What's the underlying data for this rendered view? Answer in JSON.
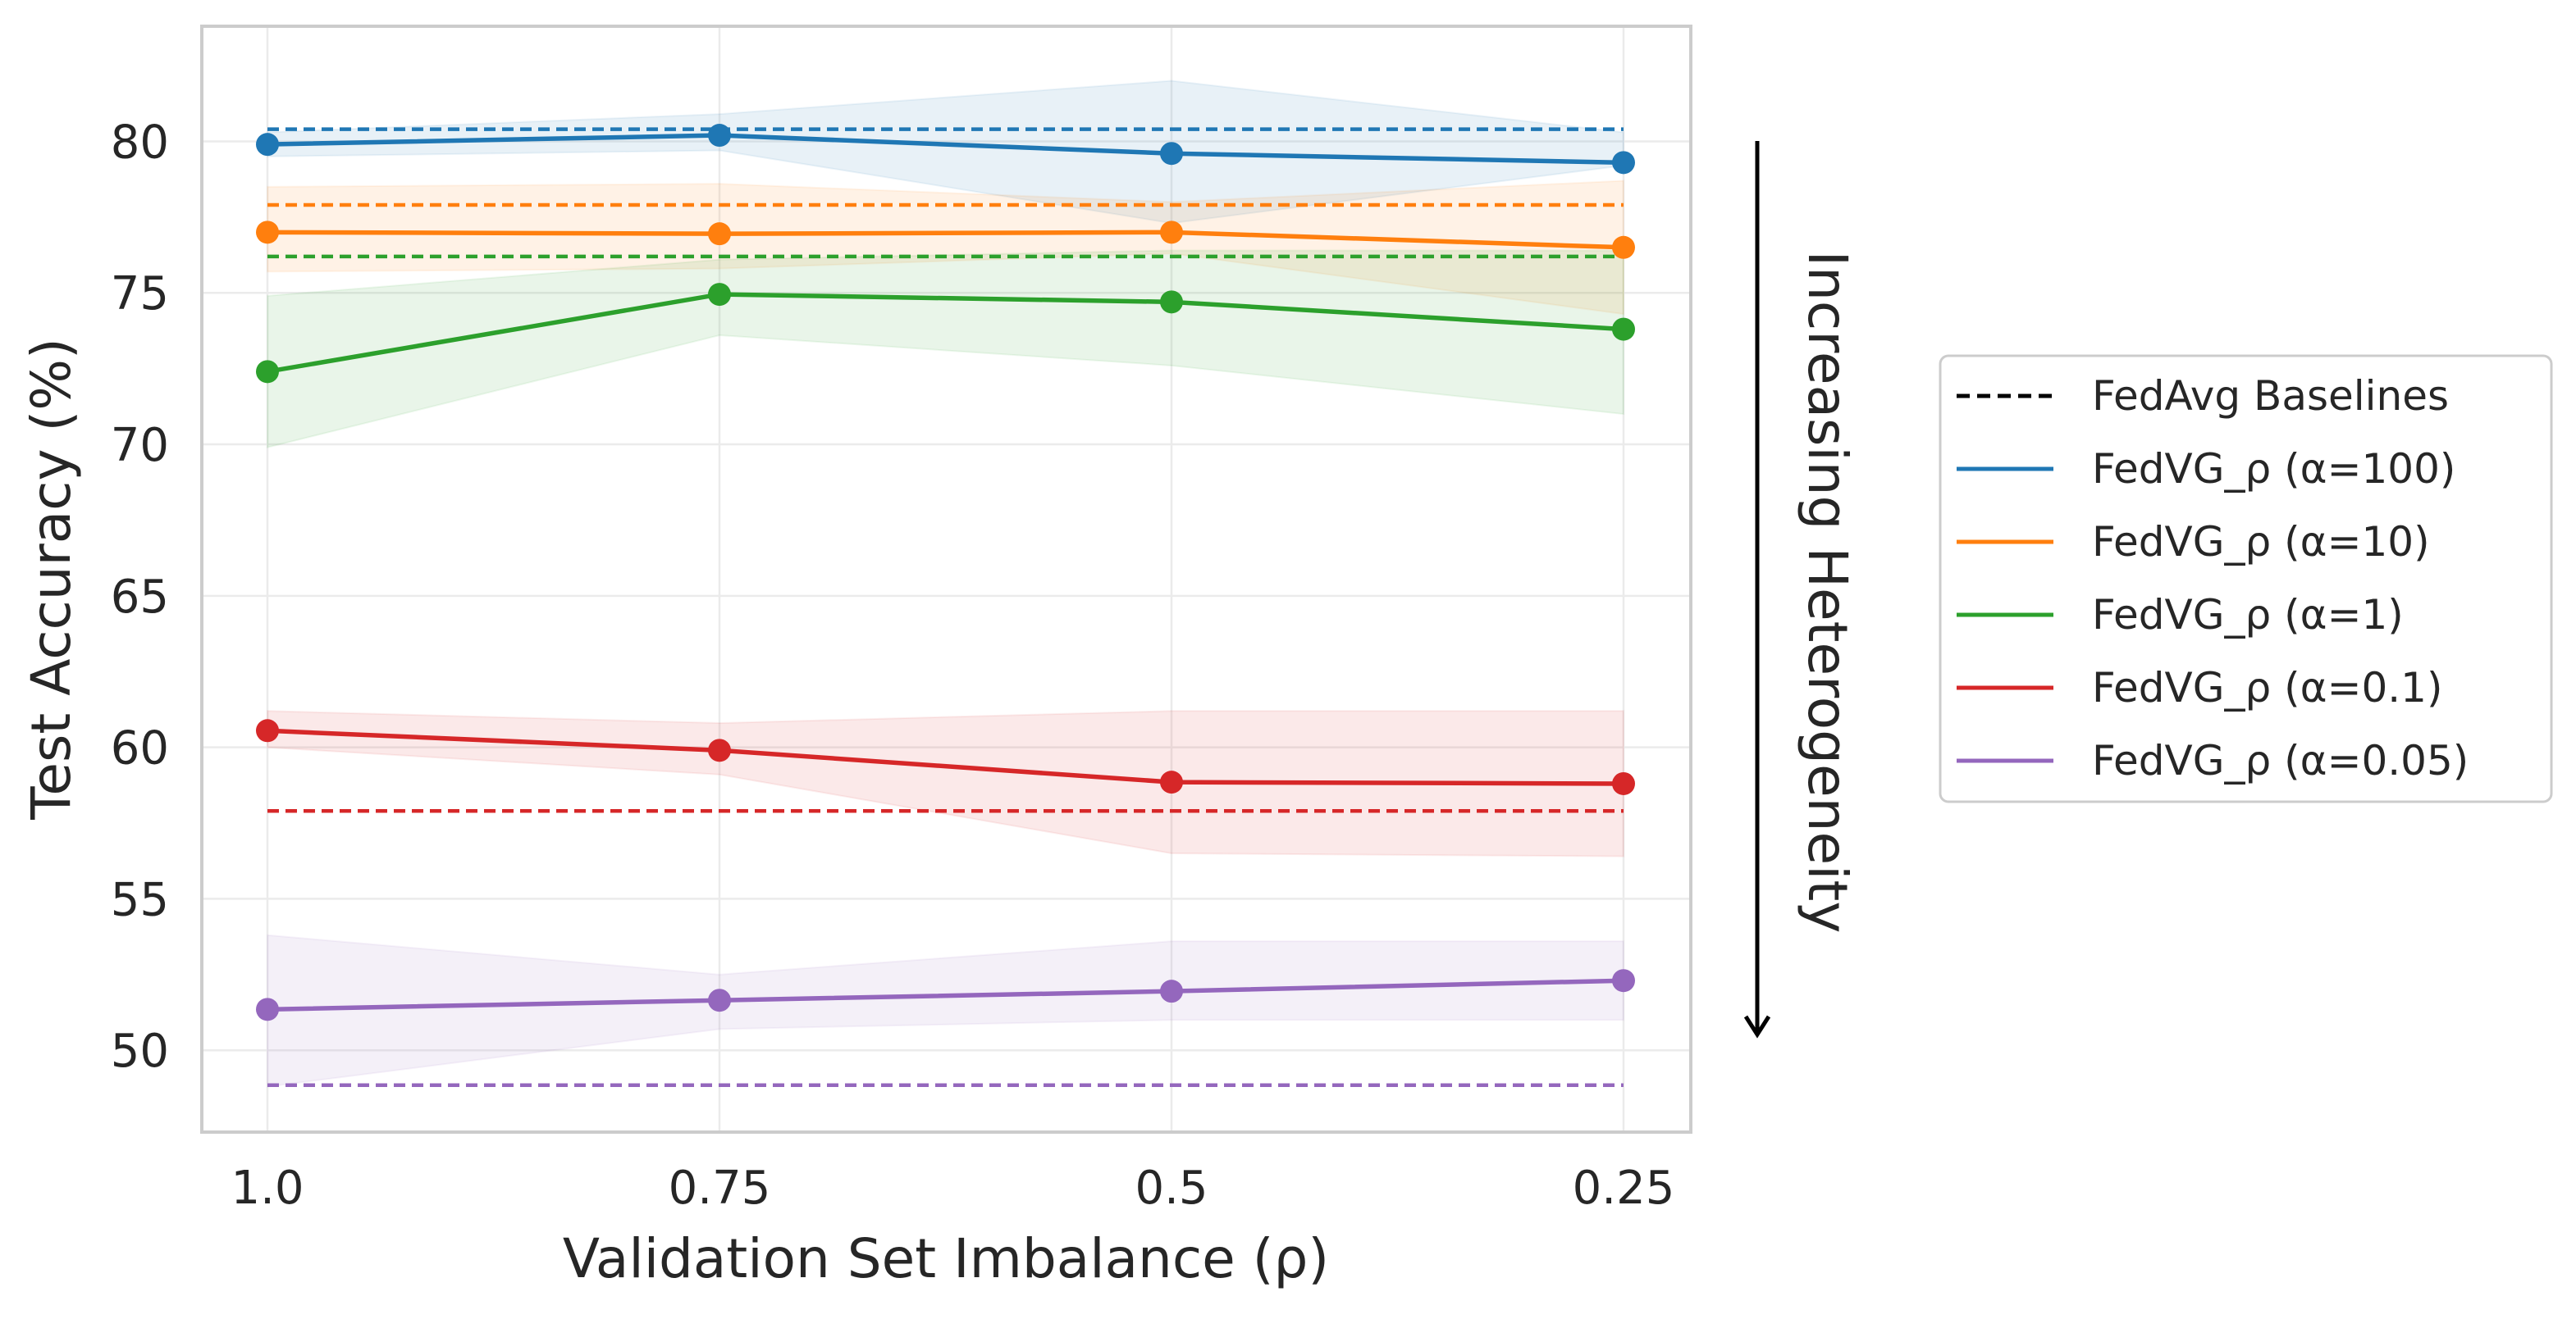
{
  "chart_data": {
    "type": "line",
    "title": "",
    "xlabel": "Validation Set Imbalance (ρ)",
    "ylabel": "Test Accuracy (%)",
    "categories": [
      "1.0",
      "0.75",
      "0.5",
      "0.25"
    ],
    "ylim": [
      47.3,
      83.8
    ],
    "yticks": [
      50,
      55,
      60,
      65,
      70,
      75,
      80
    ],
    "grid": true,
    "legend_position": "outside-right",
    "annotation": "Increasing Heterogeneity",
    "baseline_legend_label": "FedAvg Baselines",
    "series": [
      {
        "name": "FedVG_ρ (α=100)",
        "color": "#1f77b4",
        "values": [
          79.9,
          80.2,
          79.6,
          79.3
        ],
        "lower": [
          79.5,
          79.7,
          77.3,
          79.2
        ],
        "upper": [
          80.3,
          80.9,
          82.0,
          80.3
        ],
        "baseline": 80.4
      },
      {
        "name": "FedVG_ρ (α=10)",
        "color": "#ff7f0e",
        "values": [
          77.0,
          76.95,
          77.0,
          76.5
        ],
        "lower": [
          75.7,
          75.8,
          76.3,
          74.3
        ],
        "upper": [
          78.5,
          78.6,
          78.0,
          78.7
        ],
        "baseline": 77.9
      },
      {
        "name": "FedVG_ρ (α=1)",
        "color": "#2ca02c",
        "values": [
          72.4,
          74.95,
          74.7,
          73.8
        ],
        "lower": [
          69.9,
          73.6,
          72.6,
          71.0
        ],
        "upper": [
          74.9,
          76.1,
          76.4,
          76.4
        ],
        "baseline": 76.2
      },
      {
        "name": "FedVG_ρ (α=0.1)",
        "color": "#d62728",
        "values": [
          60.55,
          59.9,
          58.85,
          58.8
        ],
        "lower": [
          60.0,
          59.1,
          56.5,
          56.4
        ],
        "upper": [
          61.2,
          60.8,
          61.2,
          61.2
        ],
        "baseline": 57.9
      },
      {
        "name": "FedVG_ρ (α=0.05)",
        "color": "#9467bd",
        "values": [
          51.35,
          51.65,
          51.95,
          52.3
        ],
        "lower": [
          48.8,
          50.7,
          51.0,
          51.0
        ],
        "upper": [
          53.8,
          52.5,
          53.6,
          53.6
        ],
        "baseline": 48.85
      }
    ]
  }
}
